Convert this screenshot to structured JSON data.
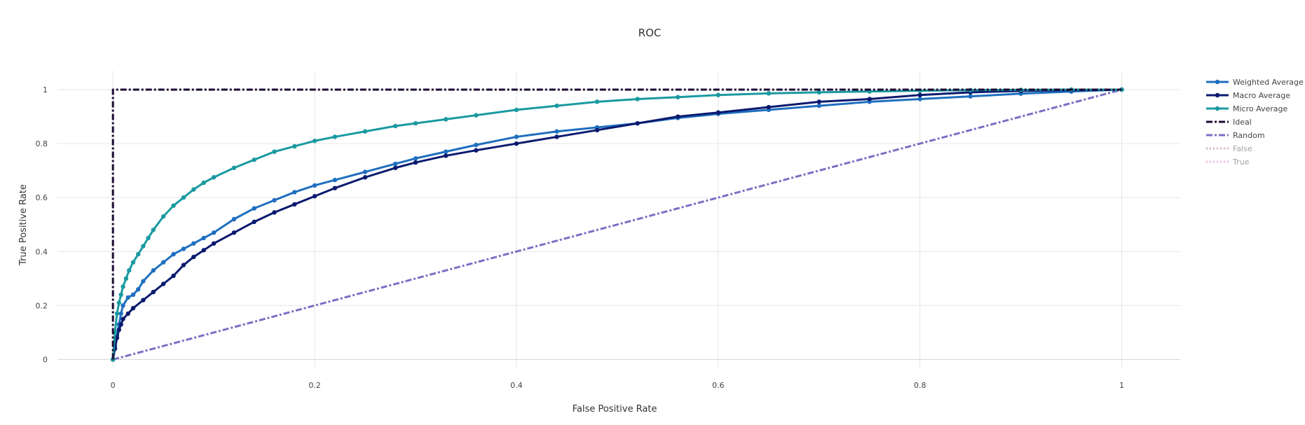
{
  "chart_data": {
    "type": "line",
    "title": "ROC",
    "xlabel": "False Positive Rate",
    "ylabel": "True Positive Rate",
    "xlim": [
      -0.055,
      1.058
    ],
    "ylim": [
      -0.03,
      1.07
    ],
    "xticks": [
      0,
      0.2,
      0.4,
      0.6,
      0.8,
      1
    ],
    "xtick_labels": [
      "0",
      "0.2",
      "0.4",
      "0.6",
      "0.8",
      "1"
    ],
    "yticks": [
      0,
      0.2,
      0.4,
      0.6,
      0.8,
      1
    ],
    "ytick_labels": [
      "0",
      "0.2",
      "0.4",
      "0.6",
      "0.8",
      "1"
    ],
    "grid": true,
    "legend_position": "right",
    "series": [
      {
        "name": "Weighted Average",
        "color": "#1f6fbf",
        "style": "solid",
        "markers": true,
        "visible": true,
        "x": [
          0,
          0.002,
          0.004,
          0.006,
          0.008,
          0.01,
          0.015,
          0.02,
          0.025,
          0.03,
          0.04,
          0.05,
          0.06,
          0.07,
          0.08,
          0.09,
          0.1,
          0.12,
          0.14,
          0.16,
          0.18,
          0.2,
          0.22,
          0.25,
          0.28,
          0.3,
          0.33,
          0.36,
          0.4,
          0.44,
          0.48,
          0.52,
          0.56,
          0.6,
          0.65,
          0.7,
          0.75,
          0.8,
          0.85,
          0.9,
          0.95,
          1
        ],
        "y": [
          0,
          0.05,
          0.09,
          0.13,
          0.17,
          0.2,
          0.23,
          0.24,
          0.26,
          0.29,
          0.33,
          0.36,
          0.39,
          0.41,
          0.43,
          0.45,
          0.47,
          0.52,
          0.56,
          0.59,
          0.62,
          0.645,
          0.665,
          0.695,
          0.725,
          0.745,
          0.77,
          0.795,
          0.825,
          0.845,
          0.86,
          0.875,
          0.895,
          0.91,
          0.925,
          0.94,
          0.955,
          0.965,
          0.975,
          0.985,
          0.993,
          1
        ]
      },
      {
        "name": "Macro Average",
        "color": "#0a1a6e",
        "style": "solid",
        "markers": true,
        "visible": true,
        "x": [
          0,
          0.002,
          0.004,
          0.006,
          0.008,
          0.01,
          0.015,
          0.02,
          0.03,
          0.04,
          0.05,
          0.06,
          0.07,
          0.08,
          0.09,
          0.1,
          0.12,
          0.14,
          0.16,
          0.18,
          0.2,
          0.22,
          0.25,
          0.28,
          0.3,
          0.33,
          0.36,
          0.4,
          0.44,
          0.48,
          0.52,
          0.56,
          0.6,
          0.65,
          0.7,
          0.75,
          0.8,
          0.85,
          0.9,
          0.95,
          1
        ],
        "y": [
          0,
          0.04,
          0.08,
          0.11,
          0.13,
          0.15,
          0.17,
          0.19,
          0.22,
          0.25,
          0.28,
          0.31,
          0.35,
          0.38,
          0.405,
          0.43,
          0.47,
          0.51,
          0.545,
          0.575,
          0.605,
          0.635,
          0.675,
          0.71,
          0.73,
          0.755,
          0.775,
          0.8,
          0.825,
          0.85,
          0.875,
          0.9,
          0.915,
          0.935,
          0.955,
          0.965,
          0.98,
          0.99,
          0.995,
          0.998,
          1
        ]
      },
      {
        "name": "Micro Average",
        "color": "#1a9aa0",
        "style": "solid",
        "markers": true,
        "visible": true,
        "x": [
          0,
          0.002,
          0.004,
          0.006,
          0.008,
          0.01,
          0.013,
          0.016,
          0.02,
          0.025,
          0.03,
          0.035,
          0.04,
          0.05,
          0.06,
          0.07,
          0.08,
          0.09,
          0.1,
          0.12,
          0.14,
          0.16,
          0.18,
          0.2,
          0.22,
          0.25,
          0.28,
          0.3,
          0.33,
          0.36,
          0.4,
          0.44,
          0.48,
          0.52,
          0.56,
          0.6,
          0.65,
          0.7,
          0.75,
          0.8,
          0.85,
          0.9,
          0.95,
          1
        ],
        "y": [
          0,
          0.1,
          0.17,
          0.21,
          0.24,
          0.27,
          0.3,
          0.33,
          0.36,
          0.39,
          0.42,
          0.45,
          0.48,
          0.53,
          0.57,
          0.6,
          0.63,
          0.655,
          0.675,
          0.71,
          0.74,
          0.77,
          0.79,
          0.81,
          0.825,
          0.845,
          0.865,
          0.875,
          0.89,
          0.905,
          0.925,
          0.94,
          0.955,
          0.965,
          0.972,
          0.98,
          0.986,
          0.99,
          0.993,
          0.996,
          0.998,
          0.999,
          1,
          1
        ]
      },
      {
        "name": "Ideal",
        "color": "#1a0a33",
        "style": "dashdot",
        "markers": false,
        "visible": true,
        "x": [
          0,
          0,
          1
        ],
        "y": [
          0,
          1,
          1
        ]
      },
      {
        "name": "Random",
        "color": "#7b6fc4",
        "style": "dashdot",
        "markers": false,
        "visible": true,
        "x": [
          0,
          1
        ],
        "y": [
          0,
          1
        ]
      },
      {
        "name": "False",
        "color": "#a0698f",
        "style": "dot",
        "markers": false,
        "visible": false,
        "x": [],
        "y": []
      },
      {
        "name": "True",
        "color": "#e377c2",
        "style": "dot",
        "markers": false,
        "visible": false,
        "x": [],
        "y": []
      }
    ]
  }
}
